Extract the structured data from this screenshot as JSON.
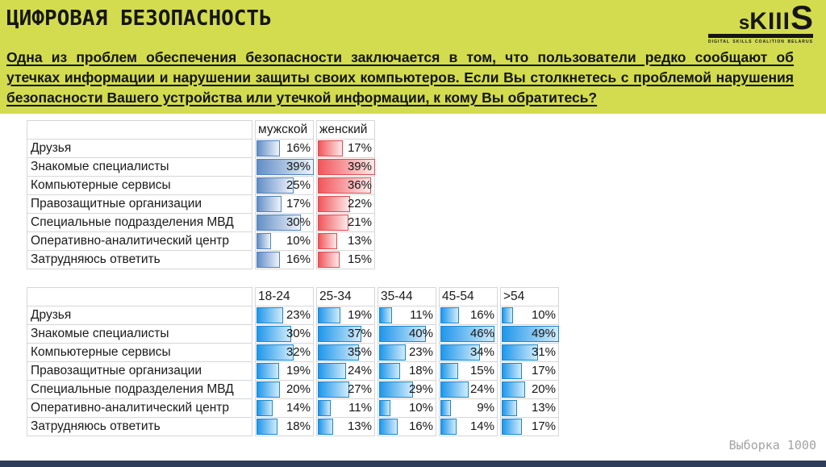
{
  "header": {
    "title": "ЦИФРОВАЯ БЕЗОПАСНОСТЬ",
    "intro_lines": [
      "Одна из проблем обеспечения безопасности заключается в том, что пользователи редко сообщают об",
      "утечках информации и нарушении защиты своих компьютеров. Если Вы столкнетесь с проблемой нарушения",
      "безопасности Вашего устройства или утечкой информации, к кому Вы обратитесь?"
    ],
    "logo": {
      "letters": [
        "s",
        "K",
        "I",
        "I",
        "I",
        "S"
      ],
      "tagline": "DIGITAL SKILLS COALITION BELARUS"
    }
  },
  "colors": {
    "header_bg": "#d3dc4f",
    "bar_male": "#638ec6",
    "bar_male_border": "#4f81bd",
    "bar_female": "#f1565b",
    "bar_female_border": "#e04a50",
    "bar_age": "#1f97ea",
    "bar_age_border": "#1887d0",
    "footer_bar": "#2e3d58"
  },
  "chart_data": [
    {
      "type": "table",
      "title": "Ответы по полу",
      "columns": [
        "мужской",
        "женский"
      ],
      "rows": [
        "Друзья",
        "Знакомые специалисты",
        "Компьютерные сервисы",
        "Правозащитные организации",
        "Специальные подразделения МВД",
        "Оперативно-аналитический центр",
        "Затрудняюсь ответить"
      ],
      "series": [
        {
          "name": "мужской",
          "bar_style": "male",
          "values": [
            16,
            39,
            25,
            17,
            30,
            10,
            16
          ]
        },
        {
          "name": "женский",
          "bar_style": "female",
          "values": [
            17,
            39,
            36,
            22,
            21,
            13,
            15
          ]
        }
      ],
      "value_suffix": "%",
      "bar_scale_max": 39,
      "layout": "data-bars scaled so column maximum fills the cell"
    },
    {
      "type": "table",
      "title": "Ответы по возрасту",
      "columns": [
        "18-24",
        "25-34",
        "35-44",
        "45-54",
        ">54"
      ],
      "rows": [
        "Друзья",
        "Знакомые специалисты",
        "Компьютерные сервисы",
        "Правозащитные организации",
        "Специальные подразделения МВД",
        "Оперативно-аналитический центр",
        "Затрудняюсь ответить"
      ],
      "series": [
        {
          "name": "18-24",
          "bar_style": "age",
          "values": [
            23,
            30,
            32,
            19,
            20,
            14,
            18
          ]
        },
        {
          "name": "25-34",
          "bar_style": "age",
          "values": [
            19,
            37,
            35,
            24,
            27,
            11,
            13
          ]
        },
        {
          "name": "35-44",
          "bar_style": "age",
          "values": [
            11,
            40,
            23,
            18,
            29,
            10,
            16
          ]
        },
        {
          "name": "45-54",
          "bar_style": "age",
          "values": [
            16,
            46,
            34,
            15,
            24,
            9,
            14
          ]
        },
        {
          "name": ">54",
          "bar_style": "age",
          "values": [
            10,
            49,
            31,
            17,
            20,
            13,
            17
          ]
        }
      ],
      "value_suffix": "%",
      "bar_scale_max": 49,
      "layout": "data-bars scaled so table maximum fills the cell"
    }
  ],
  "footer": {
    "sample_label": "Выборка 1000"
  }
}
